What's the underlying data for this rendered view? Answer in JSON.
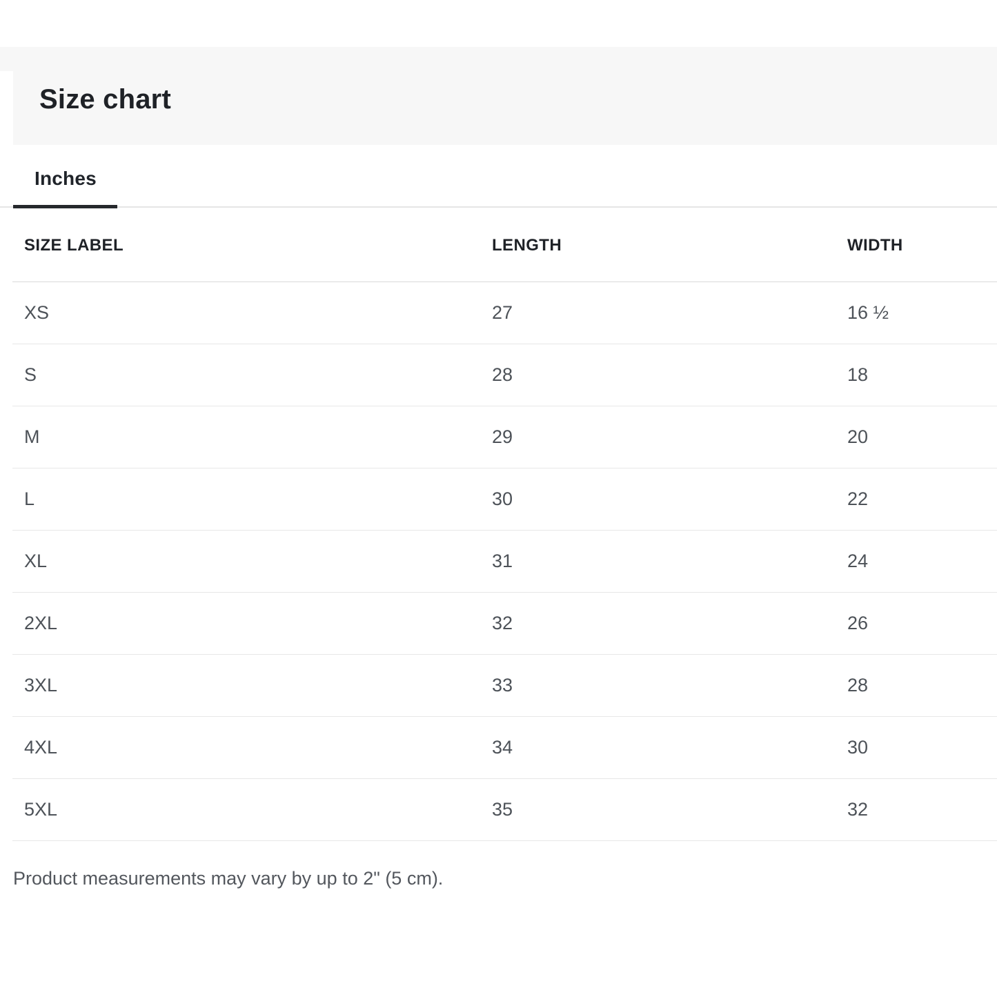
{
  "page": {
    "title": "Size chart",
    "note": "Product measurements may vary by up to 2\" (5 cm)."
  },
  "tabs": [
    {
      "label": "Inches",
      "active": true
    }
  ],
  "table": {
    "columns": [
      {
        "key": "size",
        "label": "SIZE LABEL"
      },
      {
        "key": "length",
        "label": "LENGTH"
      },
      {
        "key": "width",
        "label": "WIDTH"
      }
    ],
    "rows": [
      {
        "size": "XS",
        "length": "27",
        "width": "16 ½"
      },
      {
        "size": "S",
        "length": "28",
        "width": "18"
      },
      {
        "size": "M",
        "length": "29",
        "width": "20"
      },
      {
        "size": "L",
        "length": "30",
        "width": "22"
      },
      {
        "size": "XL",
        "length": "31",
        "width": "24"
      },
      {
        "size": "2XL",
        "length": "32",
        "width": "26"
      },
      {
        "size": "3XL",
        "length": "33",
        "width": "28"
      },
      {
        "size": "4XL",
        "length": "34",
        "width": "30"
      },
      {
        "size": "5XL",
        "length": "35",
        "width": "32"
      }
    ]
  },
  "colors": {
    "band_bg": "#f7f7f7",
    "heading_text": "#1f2227",
    "cell_text": "#4d5258",
    "active_tab_underline": "#26282c",
    "divider": "#e7e7e7",
    "header_divider": "#d9d9d9"
  }
}
